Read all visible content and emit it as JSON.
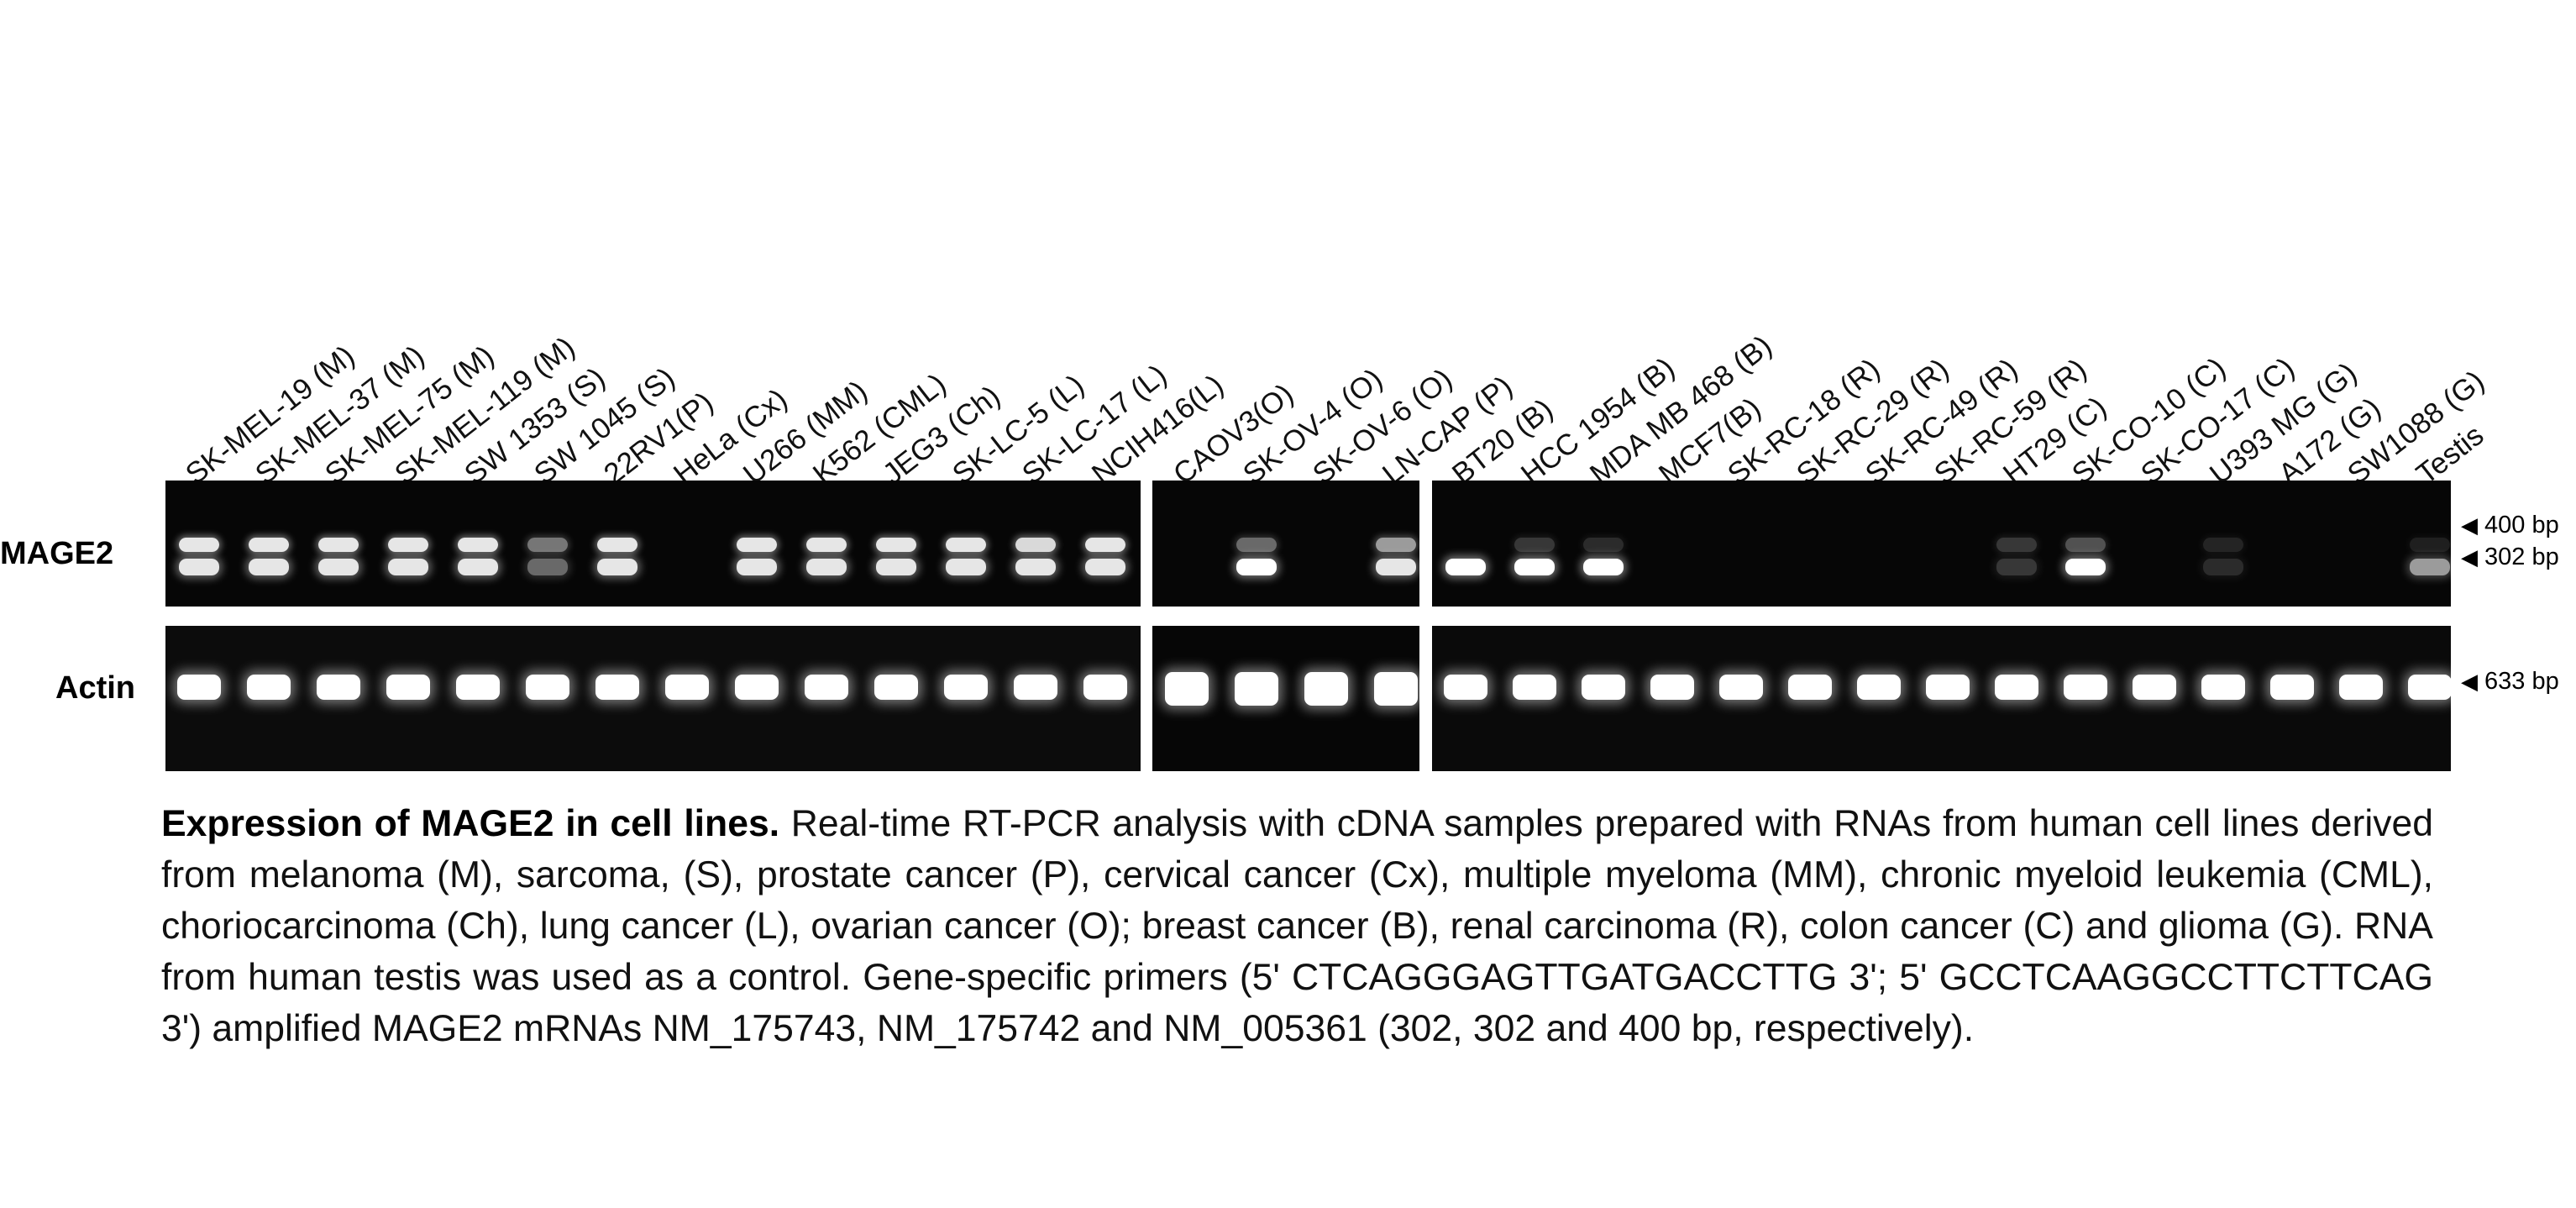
{
  "lanes": [
    "SK-MEL-19 (M)",
    "SK-MEL-37 (M)",
    "SK-MEL-75 (M)",
    "SK-MEL-119 (M)",
    "SW 1353 (S)",
    "SW 1045 (S)",
    "22RV1(P)",
    "HeLa (Cx)",
    "U266 (MM)",
    "K562 (CML)",
    "JEG3 (Ch)",
    "SK-LC-5 (L)",
    "SK-LC-17 (L)",
    "NCIH416(L)",
    "CAOV3(O)",
    "SK-OV-4 (O)",
    "SK-OV-6 (O)",
    "LN-CAP (P)",
    "BT20 (B)",
    "HCC 1954 (B)",
    "MDA MB 468 (B)",
    "MCF7(B)",
    "SK-RC-18 (R)",
    "SK-RC-29 (R)",
    "SK-RC-49 (R)",
    "SK-RC-59 (R)",
    "HT29 (C)",
    "SK-CO-10 (C)",
    "SK-CO-17 (C)",
    "U393 MG (G)",
    "A172 (G)",
    "SW1088 (G)",
    "Testis"
  ],
  "rows": {
    "mage2_label": "MAGE2",
    "actin_label": "Actin"
  },
  "markers": {
    "m400": "400 bp",
    "m302": "302 bp",
    "m633": "633 bp",
    "arrow": "◀"
  },
  "mage2_bands": {
    "upper_400bp": [
      0.9,
      0.9,
      0.9,
      0.9,
      0.9,
      0.45,
      0.9,
      0,
      0.9,
      0.9,
      0.9,
      0.9,
      0.85,
      0.9,
      0,
      0.4,
      0,
      0.6,
      0,
      0.2,
      0.15,
      0,
      0,
      0,
      0,
      0,
      0.2,
      0.3,
      0,
      0.12,
      0,
      0,
      0.1
    ],
    "lower_302bp": [
      0.9,
      0.9,
      0.9,
      0.9,
      0.9,
      0.4,
      0.9,
      0,
      0.9,
      0.9,
      0.9,
      0.9,
      0.9,
      0.9,
      0,
      1,
      0,
      0.9,
      1,
      1,
      1,
      0,
      0,
      0,
      0,
      0,
      0.2,
      1,
      0,
      0.15,
      0,
      0,
      0.6
    ]
  },
  "actin_bands": [
    1,
    1,
    1,
    1,
    1,
    1,
    1,
    1,
    1,
    1,
    1,
    1,
    1,
    1,
    1,
    1,
    1,
    1,
    1,
    1,
    1,
    1,
    1,
    1,
    1,
    1,
    1,
    1,
    1,
    1,
    1,
    1,
    1
  ],
  "caption": {
    "title": "Expression of MAGE2 in cell lines.",
    "body": "Real-time RT-PCR analysis with cDNA samples prepared with RNAs from human cell lines derived from melanoma (M), sarcoma, (S), prostate cancer (P), cervical cancer (Cx), multiple myeloma (MM), chronic myeloid leukemia (CML), choriocarcinoma (Ch), lung cancer (L), ovarian cancer (O); breast cancer (B), renal carcinoma (R), colon cancer (C) and glioma (G). RNA from human testis was used as a control. Gene-specific primers (5' CTCAGGGAGTTGATGACCTTG 3'; 5' GCCTCAAGGCCTTCTTCAG 3') amplified MAGE2 mRNAs NM_175743, NM_175742 and NM_005361 (302, 302 and 400 bp, respectively)."
  }
}
